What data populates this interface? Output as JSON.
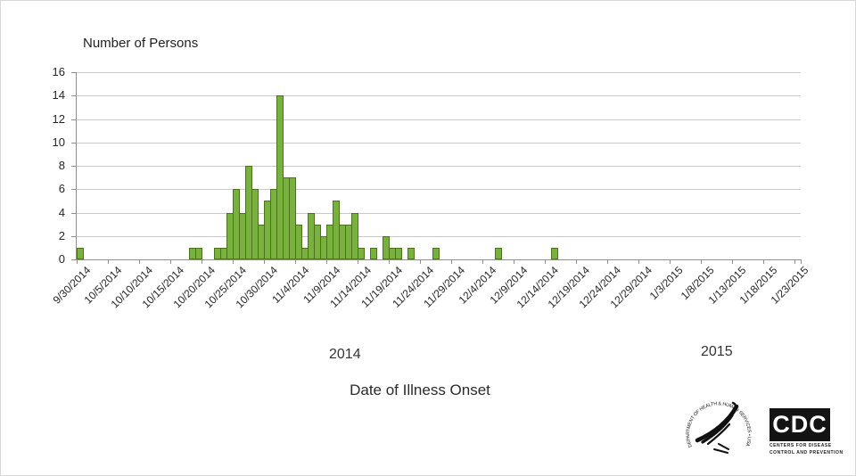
{
  "chart_data": {
    "type": "bar",
    "title": "Number of Persons",
    "xlabel": "Date of Illness Onset",
    "ylabel": "Number of Persons",
    "ylim": [
      0,
      16
    ],
    "y_tick_step": 2,
    "y_tick_labels": [
      "0",
      "2",
      "4",
      "6",
      "8",
      "10",
      "12",
      "14",
      "16"
    ],
    "x_tick_interval_days": 5,
    "x_tick_labels": [
      "9/30/2014",
      "10/5/2014",
      "10/10/2014",
      "10/15/2014",
      "10/20/2014",
      "10/25/2014",
      "10/30/2014",
      "11/4/2014",
      "11/9/2014",
      "11/14/2014",
      "11/19/2014",
      "11/24/2014",
      "11/29/2014",
      "12/4/2014",
      "12/9/2014",
      "12/14/2014",
      "12/19/2014",
      "12/24/2014",
      "12/29/2014",
      "1/3/2015",
      "1/8/2015",
      "1/13/2015",
      "1/18/2015",
      "1/23/2015"
    ],
    "axis_start_date": "9/30/2014",
    "axis_end_date": "1/23/2015",
    "axis_total_days": 116,
    "grid": true,
    "legend": "none",
    "year_label_2014": "2014",
    "year_label_2015": "2015",
    "bar_color": "#78B13E",
    "bar_border_color": "#4D721C",
    "bars": [
      {
        "date": "9/30/2014",
        "day": 0,
        "value": 1
      },
      {
        "date": "10/18/2014",
        "day": 18,
        "value": 1
      },
      {
        "date": "10/19/2014",
        "day": 19,
        "value": 1
      },
      {
        "date": "10/22/2014",
        "day": 22,
        "value": 1
      },
      {
        "date": "10/23/2014",
        "day": 23,
        "value": 1
      },
      {
        "date": "10/24/2014",
        "day": 24,
        "value": 4
      },
      {
        "date": "10/25/2014",
        "day": 25,
        "value": 6
      },
      {
        "date": "10/26/2014",
        "day": 26,
        "value": 4
      },
      {
        "date": "10/27/2014",
        "day": 27,
        "value": 8
      },
      {
        "date": "10/28/2014",
        "day": 28,
        "value": 6
      },
      {
        "date": "10/29/2014",
        "day": 29,
        "value": 3
      },
      {
        "date": "10/30/2014",
        "day": 30,
        "value": 5
      },
      {
        "date": "10/31/2014",
        "day": 31,
        "value": 6
      },
      {
        "date": "11/1/2014",
        "day": 32,
        "value": 14
      },
      {
        "date": "11/2/2014",
        "day": 33,
        "value": 7
      },
      {
        "date": "11/3/2014",
        "day": 34,
        "value": 7
      },
      {
        "date": "11/4/2014",
        "day": 35,
        "value": 3
      },
      {
        "date": "11/5/2014",
        "day": 36,
        "value": 1
      },
      {
        "date": "11/6/2014",
        "day": 37,
        "value": 4
      },
      {
        "date": "11/7/2014",
        "day": 38,
        "value": 3
      },
      {
        "date": "11/8/2014",
        "day": 39,
        "value": 2
      },
      {
        "date": "11/9/2014",
        "day": 40,
        "value": 3
      },
      {
        "date": "11/10/2014",
        "day": 41,
        "value": 5
      },
      {
        "date": "11/11/2014",
        "day": 42,
        "value": 3
      },
      {
        "date": "11/12/2014",
        "day": 43,
        "value": 3
      },
      {
        "date": "11/13/2014",
        "day": 44,
        "value": 4
      },
      {
        "date": "11/14/2014",
        "day": 45,
        "value": 1
      },
      {
        "date": "11/16/2014",
        "day": 47,
        "value": 1
      },
      {
        "date": "11/18/2014",
        "day": 49,
        "value": 2
      },
      {
        "date": "11/19/2014",
        "day": 50,
        "value": 1
      },
      {
        "date": "11/20/2014",
        "day": 51,
        "value": 1
      },
      {
        "date": "11/22/2014",
        "day": 53,
        "value": 1
      },
      {
        "date": "11/26/2014",
        "day": 57,
        "value": 1
      },
      {
        "date": "12/6/2014",
        "day": 67,
        "value": 1
      },
      {
        "date": "12/15/2014",
        "day": 76,
        "value": 1
      }
    ]
  },
  "footer": {
    "hhs_seal_text": "DEPARTMENT OF HEALTH & HUMAN SERVICES • USA",
    "cdc_logo_text": "CDC",
    "cdc_tagline_line1": "CENTERS FOR DISEASE",
    "cdc_tagline_line2": "CONTROL AND PREVENTION"
  }
}
